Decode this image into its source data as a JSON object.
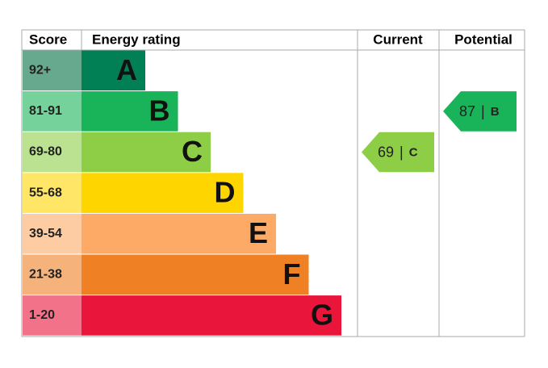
{
  "header": {
    "score": "Score",
    "rating": "Energy rating",
    "current": "Current",
    "potential": "Potential"
  },
  "bands": [
    {
      "range": "92+",
      "letter": "A",
      "color": "#008054",
      "score_color": "#66a98e"
    },
    {
      "range": "81-91",
      "letter": "B",
      "color": "#19b459",
      "score_color": "#75d29b"
    },
    {
      "range": "69-80",
      "letter": "C",
      "color": "#8dce46",
      "score_color": "#bbe290"
    },
    {
      "range": "55-68",
      "letter": "D",
      "color": "#ffd500",
      "score_color": "#ffe666"
    },
    {
      "range": "39-54",
      "letter": "E",
      "color": "#fcaa65",
      "score_color": "#fdcca3"
    },
    {
      "range": "21-38",
      "letter": "F",
      "color": "#ef8023",
      "score_color": "#f5b37b"
    },
    {
      "range": "1-20",
      "letter": "G",
      "color": "#e9153b",
      "score_color": "#f27389"
    }
  ],
  "current": {
    "score": 69,
    "separator": "|",
    "band": "C"
  },
  "potential": {
    "score": 87,
    "separator": "|",
    "band": "B"
  }
}
